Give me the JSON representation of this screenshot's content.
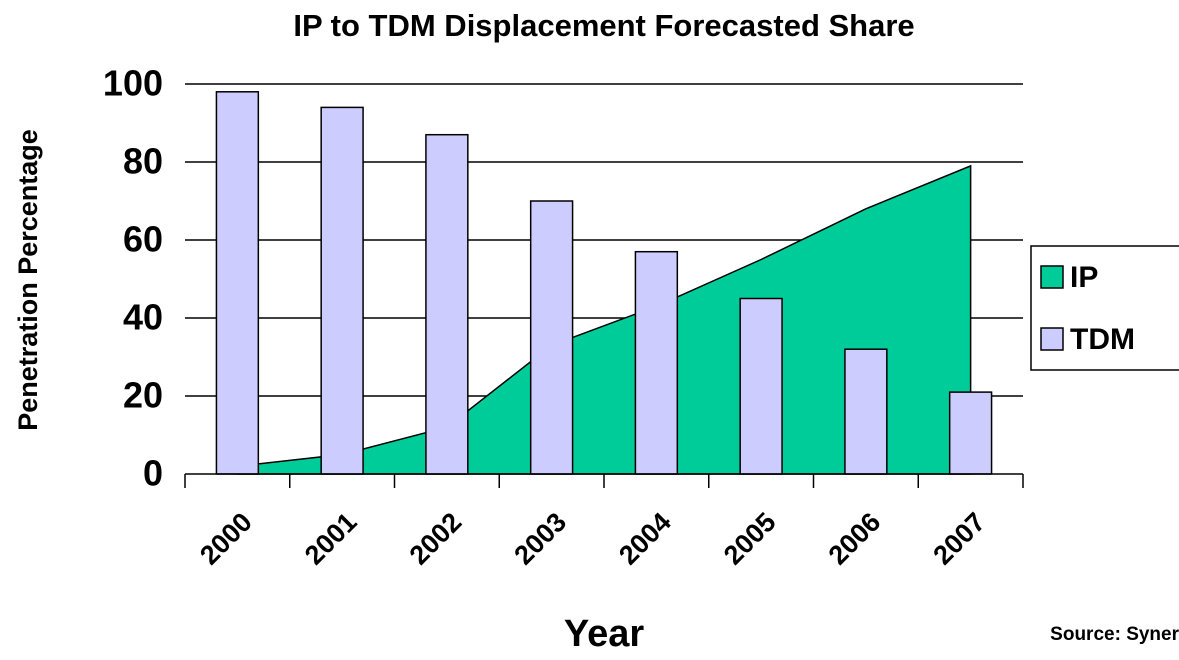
{
  "chart_data": {
    "type": "combo",
    "title": "IP to TDM Displacement Forecasted Share",
    "x_label": "Year",
    "y_label": "Penetration Percentage",
    "annotation": "Source:  Syner",
    "categories": [
      "2000",
      "2001",
      "2002",
      "2003",
      "2004",
      "2005",
      "2006",
      "2007"
    ],
    "series": [
      {
        "name": "IP",
        "type": "area",
        "color": "#00cc99",
        "values": [
          2,
          5,
          12,
          33,
          43,
          55,
          68,
          79
        ]
      },
      {
        "name": "TDM",
        "type": "bar",
        "color": "#ccccff",
        "values": [
          98,
          94,
          87,
          70,
          57,
          45,
          32,
          21
        ]
      }
    ],
    "ylim": [
      0,
      100
    ],
    "yticks": [
      0,
      20,
      40,
      60,
      80,
      100
    ],
    "grid": true,
    "legend": "right"
  }
}
